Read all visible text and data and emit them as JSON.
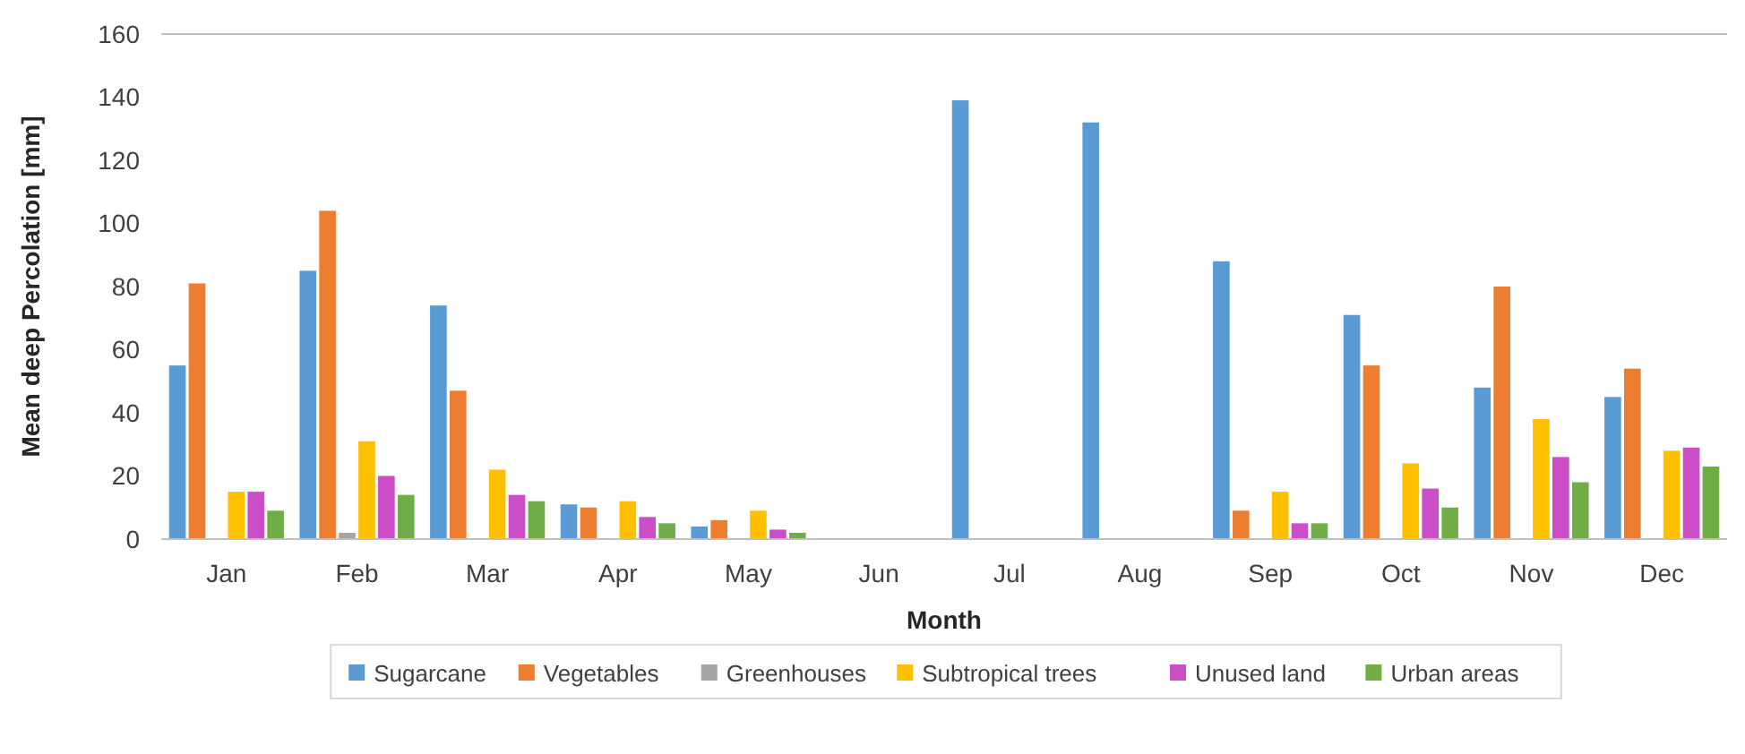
{
  "chart_data": {
    "type": "bar",
    "xlabel": "Month",
    "ylabel": "Mean deep Percolation [mm]",
    "categories": [
      "Jan",
      "Feb",
      "Mar",
      "Apr",
      "May",
      "Jun",
      "Jul",
      "Aug",
      "Sep",
      "Oct",
      "Nov",
      "Dec"
    ],
    "series": [
      {
        "name": "Sugarcane",
        "color": "#5b9bd5",
        "values": [
          55,
          85,
          74,
          11,
          4,
          0,
          139,
          132,
          88,
          71,
          48,
          45
        ]
      },
      {
        "name": "Vegetables",
        "color": "#ed7d31",
        "values": [
          81,
          104,
          47,
          10,
          6,
          0,
          0,
          0,
          9,
          55,
          80,
          54
        ]
      },
      {
        "name": "Greenhouses",
        "color": "#a5a5a5",
        "values": [
          0,
          2,
          0,
          0,
          0,
          0,
          0,
          0,
          0,
          0,
          0,
          0
        ]
      },
      {
        "name": "Subtropical trees",
        "color": "#ffc000",
        "values": [
          15,
          31,
          22,
          12,
          9,
          0,
          0,
          0,
          15,
          24,
          38,
          28
        ]
      },
      {
        "name": "Unused land",
        "color": "#cc4ec7",
        "values": [
          15,
          20,
          14,
          7,
          3,
          0,
          0,
          0,
          5,
          16,
          26,
          29
        ]
      },
      {
        "name": "Urban areas",
        "color": "#70ad47",
        "values": [
          9,
          14,
          12,
          5,
          2,
          0,
          0,
          0,
          5,
          10,
          18,
          23
        ]
      }
    ],
    "ylim": [
      0,
      160
    ],
    "yticks": [
      0,
      20,
      40,
      60,
      80,
      100,
      120,
      140,
      160
    ],
    "grid": false,
    "legend": "bottom"
  }
}
